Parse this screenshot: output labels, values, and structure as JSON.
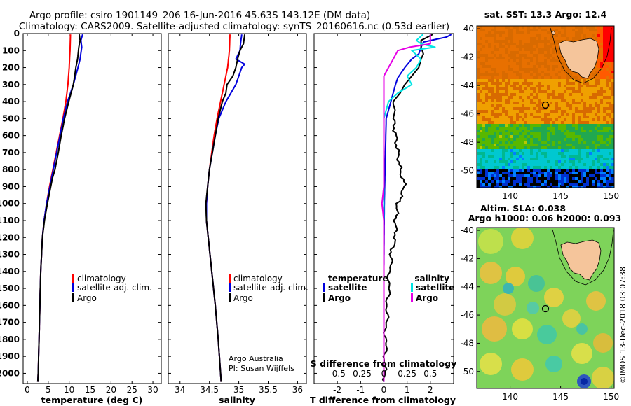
{
  "header": {
    "title_line1": "Argo profile: csiro 1901149_206 16-Jun-2016 45.63S 143.12E (DM data)",
    "title_line2": "Climatology: CARS2009. Satellite-adjusted climatology: synTS_20160616.nc (0.53d earlier)"
  },
  "colors": {
    "climatology": "#ff0000",
    "satellite": "#0000dd",
    "argo": "#000000",
    "temp_sat_diff": "#0000dd",
    "sal_sat_diff": "#00e5e5",
    "sal_argo_diff": "#e600e6"
  },
  "chart_data": [
    {
      "id": "temperature",
      "type": "line",
      "xlabel": "temperature (deg C)",
      "xlim": [
        -1,
        32
      ],
      "xticks": [
        "0",
        "5",
        "10",
        "15",
        "20",
        "25",
        "30"
      ],
      "ylim": [
        2060,
        0
      ],
      "yticks": [
        "0",
        "100",
        "200",
        "300",
        "400",
        "500",
        "600",
        "700",
        "800",
        "900",
        "1000",
        "1100",
        "1200",
        "1300",
        "1400",
        "1500",
        "1600",
        "1700",
        "1800",
        "1900",
        "2000"
      ],
      "legend": [
        "climatology",
        "satellite-adj. clim.",
        "Argo"
      ],
      "series": [
        {
          "name": "climatology",
          "depth": [
            5,
            100,
            200,
            300,
            400,
            500,
            600,
            700,
            800,
            900,
            1000,
            1100,
            1200,
            1400,
            1600,
            1800,
            2000,
            2050
          ],
          "values": [
            10.3,
            10.2,
            10.0,
            9.7,
            9.2,
            8.5,
            7.7,
            6.9,
            6.1,
            5.3,
            4.6,
            4.0,
            3.6,
            3.2,
            3.0,
            2.8,
            2.6,
            2.5
          ]
        },
        {
          "name": "satellite-adj. clim.",
          "depth": [
            5,
            40,
            80,
            150,
            200,
            300,
            400,
            500,
            600,
            700,
            800,
            900,
            1000,
            1100,
            1200,
            1400,
            1600,
            1800,
            2000,
            2050
          ],
          "values": [
            13.2,
            12.8,
            13.0,
            12.6,
            12.1,
            11.0,
            9.6,
            8.6,
            7.8,
            7.0,
            6.2,
            5.4,
            4.6,
            4.0,
            3.6,
            3.2,
            3.0,
            2.8,
            2.6,
            2.5
          ]
        },
        {
          "name": "Argo",
          "depth": [
            5,
            40,
            80,
            150,
            200,
            300,
            400,
            450,
            500,
            600,
            700,
            800,
            850,
            900,
            1000,
            1100,
            1200,
            1400,
            1600,
            1800,
            2000,
            2050
          ],
          "values": [
            12.4,
            12.6,
            12.3,
            12.0,
            11.6,
            11.0,
            9.9,
            9.4,
            8.9,
            8.1,
            7.4,
            6.6,
            6.0,
            5.6,
            4.8,
            4.1,
            3.6,
            3.2,
            3.0,
            2.8,
            2.6,
            2.5
          ]
        }
      ]
    },
    {
      "id": "salinity",
      "type": "line",
      "xlabel": "salinity",
      "xlim": [
        33.8,
        36.15
      ],
      "xticks": [
        "34",
        "34.5",
        "35",
        "35.5",
        "36"
      ],
      "ylim": [
        2060,
        0
      ],
      "legend": [
        "climatology",
        "satellite-adj. clim.",
        "Argo"
      ],
      "annotations": [
        "Argo Australia",
        "PI: Susan Wijffels"
      ],
      "series": [
        {
          "name": "climatology",
          "depth": [
            5,
            100,
            200,
            300,
            400,
            500,
            600,
            700,
            800,
            900,
            1000,
            1100,
            1200,
            1400,
            1600,
            1800,
            2000,
            2050
          ],
          "values": [
            34.85,
            34.84,
            34.81,
            34.75,
            34.69,
            34.63,
            34.58,
            34.54,
            34.5,
            34.47,
            34.45,
            34.45,
            34.48,
            34.54,
            34.6,
            34.65,
            34.69,
            34.7
          ]
        },
        {
          "name": "satellite-adj. clim.",
          "depth": [
            5,
            60,
            100,
            150,
            180,
            200,
            300,
            400,
            500,
            600,
            700,
            800,
            900,
            1000,
            1100,
            1200,
            1400,
            1600,
            1800,
            2000,
            2050
          ],
          "values": [
            35.05,
            35.03,
            35.02,
            34.95,
            35.1,
            35.05,
            34.95,
            34.78,
            34.66,
            34.6,
            34.55,
            34.5,
            34.47,
            34.45,
            34.45,
            34.48,
            34.54,
            34.6,
            34.65,
            34.69,
            34.7
          ]
        },
        {
          "name": "Argo",
          "depth": [
            5,
            60,
            100,
            150,
            200,
            250,
            300,
            350,
            400,
            500,
            600,
            700,
            800,
            900,
            1000,
            1100,
            1200,
            1400,
            1600,
            1800,
            2000,
            2050
          ],
          "values": [
            35.1,
            35.08,
            35.02,
            34.98,
            34.95,
            34.9,
            34.8,
            34.78,
            34.72,
            34.65,
            34.6,
            34.55,
            34.5,
            34.47,
            34.44,
            34.45,
            34.48,
            34.54,
            34.6,
            34.65,
            34.69,
            34.7
          ]
        }
      ]
    },
    {
      "id": "differences",
      "type": "line",
      "xlabel": "T difference from climatology",
      "xlabel2": "S difference from climatology",
      "xlim": [
        -3,
        3
      ],
      "xticks": [
        "-2",
        "-1",
        "0",
        "1",
        "2"
      ],
      "xticks2": [
        "-0.5",
        "-0.25",
        "0",
        "0.25",
        "0.5"
      ],
      "ylim": [
        2060,
        0
      ],
      "legend_left_title": "temperature",
      "legend_left": [
        "satellite",
        "Argo"
      ],
      "legend_right_title": "salinity",
      "legend_right": [
        "satellite",
        "Argo"
      ],
      "series": [
        {
          "name": "temperature satellite",
          "depth": [
            5,
            20,
            50,
            80,
            120,
            150,
            200,
            260,
            300,
            400,
            500,
            800,
            1000,
            1400,
            2050
          ],
          "values": [
            2.9,
            2.7,
            1.7,
            1.6,
            1.5,
            1.2,
            0.9,
            0.6,
            0.5,
            0.3,
            0.1,
            0.05,
            0.02,
            0.0,
            0.0
          ]
        },
        {
          "name": "temperature Argo",
          "depth": [
            5,
            40,
            80,
            120,
            150,
            200,
            250,
            300,
            350,
            400,
            450,
            500,
            600,
            700,
            800,
            900,
            1000,
            1100,
            1200,
            1300,
            1500,
            1700,
            1900,
            2050
          ],
          "values": [
            2.1,
            1.6,
            1.6,
            1.7,
            1.6,
            1.5,
            1.2,
            0.9,
            0.7,
            0.4,
            0.5,
            0.4,
            0.5,
            0.6,
            0.7,
            0.9,
            0.6,
            0.5,
            0.5,
            0.3,
            0.2,
            0.1,
            0.05,
            0.0
          ]
        },
        {
          "name": "salinity satellite",
          "depth": [
            5,
            40,
            60,
            80,
            100,
            150,
            200,
            250,
            300,
            350,
            400,
            500,
            800,
            1200,
            1600,
            2050
          ],
          "values": [
            0.42,
            0.35,
            0.4,
            0.55,
            0.3,
            0.4,
            0.35,
            0.25,
            0.3,
            0.15,
            0.05,
            0.0,
            0.0,
            0.0,
            0.0,
            0.0
          ]
        },
        {
          "name": "salinity Argo",
          "depth": [
            5,
            60,
            80,
            100,
            150,
            200,
            250,
            300,
            350,
            400,
            500,
            700,
            900,
            1000,
            1100,
            1300,
            1600,
            2050
          ],
          "values": [
            0.5,
            0.5,
            0.28,
            0.15,
            0.1,
            0.05,
            0.0,
            0.0,
            0.0,
            0.0,
            0.0,
            0.0,
            0.0,
            -0.02,
            0.0,
            0.0,
            0.0,
            0.0
          ]
        }
      ]
    },
    {
      "id": "sst_map",
      "type": "heatmap",
      "title": "sat. SST: 13.3 Argo: 12.4",
      "xlim": [
        136.7,
        150.3
      ],
      "ylim": [
        -51.2,
        -39.8
      ],
      "xticks": [
        "140",
        "145",
        "150"
      ],
      "yticks": [
        "-40",
        "-42",
        "-44",
        "-46",
        "-48",
        "-50"
      ],
      "argo_position": [
        143.12,
        -45.63
      ]
    },
    {
      "id": "sla_map",
      "type": "heatmap",
      "title": "Altim. SLA: 0.038",
      "subtitle": "Argo h1000: 0.06 h2000: 0.093",
      "xlim": [
        136.7,
        150.3
      ],
      "ylim": [
        -51.2,
        -39.8
      ],
      "xticks": [
        "140",
        "145",
        "150"
      ],
      "yticks": [
        "-40",
        "-42",
        "-44",
        "-46",
        "-48",
        "-50"
      ],
      "argo_position": [
        143.12,
        -45.63
      ]
    }
  ],
  "footer": {
    "stamp": "©IMOS 13-Dec-2018 03:07:38"
  }
}
